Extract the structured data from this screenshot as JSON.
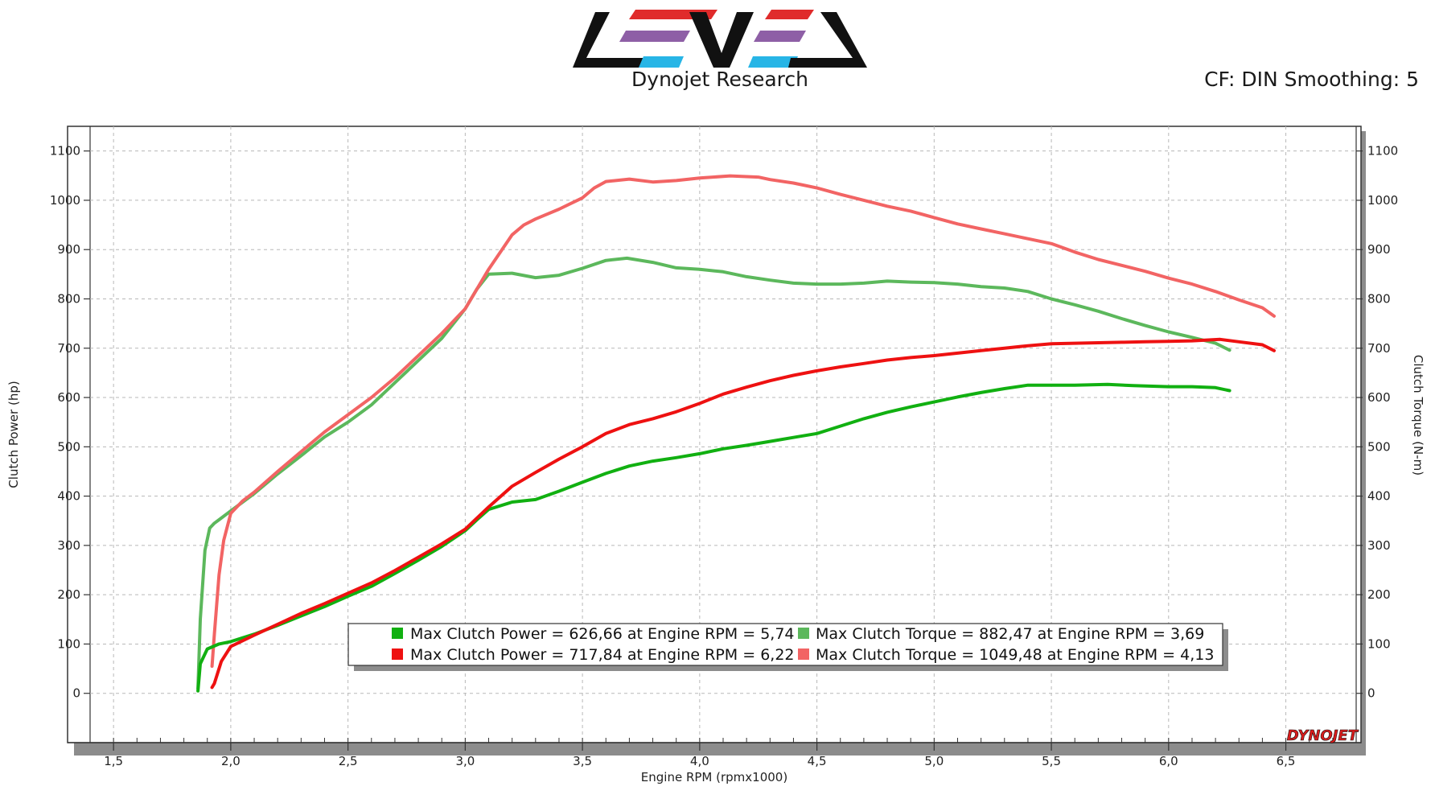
{
  "header": {
    "brand": "Dynojet Research",
    "settings": "CF: DIN Smoothing: 5",
    "watermark": "DYNOJET",
    "logo_text": "LEVEL"
  },
  "colors": {
    "power_green": "#11b011",
    "torque_green": "#5cb85c",
    "power_red": "#ee1111",
    "torque_red": "#f26464",
    "logo_red": "#e02b2b",
    "logo_purple": "#8e5fa6",
    "logo_blue": "#27b5e6"
  },
  "chart_data": {
    "type": "line",
    "xlabel": "Engine RPM (rpmx1000)",
    "ylabel_left": "Clutch Power (hp)",
    "ylabel_right": "Clutch Torque (N-m)",
    "xlim": [
      1.4,
      6.8
    ],
    "ylim": [
      -100,
      1150
    ],
    "x_ticks": [
      "1,5",
      "2,0",
      "2,5",
      "3,0",
      "3,5",
      "4,0",
      "4,5",
      "5,0",
      "5,5",
      "6,0",
      "6,5"
    ],
    "x_tick_values": [
      1.5,
      2.0,
      2.5,
      3.0,
      3.5,
      4.0,
      4.5,
      5.0,
      5.5,
      6.0,
      6.5
    ],
    "y_ticks": [
      "0",
      "100",
      "200",
      "300",
      "400",
      "500",
      "600",
      "700",
      "800",
      "900",
      "1000",
      "1100"
    ],
    "y_tick_values": [
      0,
      100,
      200,
      300,
      400,
      500,
      600,
      700,
      800,
      900,
      1000,
      1100
    ],
    "grid": true,
    "legend_position": "bottom-center",
    "series": [
      {
        "name": "Max Clutch Power = 626,66 at Engine RPM = 5,74",
        "color_key": "power_green",
        "width": 4,
        "x": [
          1.86,
          1.87,
          1.9,
          1.95,
          2.0,
          2.1,
          2.2,
          2.3,
          2.4,
          2.5,
          2.6,
          2.7,
          2.8,
          2.9,
          3.0,
          3.05,
          3.1,
          3.2,
          3.3,
          3.4,
          3.5,
          3.6,
          3.7,
          3.8,
          3.9,
          4.0,
          4.1,
          4.2,
          4.3,
          4.4,
          4.5,
          4.6,
          4.7,
          4.8,
          4.9,
          5.0,
          5.1,
          5.2,
          5.3,
          5.4,
          5.5,
          5.6,
          5.74,
          5.85,
          6.0,
          6.1,
          6.2,
          6.26
        ],
        "y": [
          5,
          60,
          90,
          100,
          105,
          120,
          138,
          157,
          176,
          197,
          217,
          243,
          270,
          298,
          330,
          352,
          373,
          388,
          393,
          410,
          428,
          446,
          461,
          471,
          478,
          486,
          496,
          503,
          511,
          519,
          527,
          542,
          557,
          570,
          581,
          591,
          601,
          610,
          618,
          625,
          625,
          625,
          626.66,
          624,
          622,
          622,
          620,
          614
        ]
      },
      {
        "name": "Max Clutch Power = 717,84 at Engine RPM = 6,22",
        "color_key": "power_red",
        "width": 4,
        "x": [
          1.92,
          1.93,
          1.96,
          2.0,
          2.1,
          2.2,
          2.3,
          2.4,
          2.5,
          2.6,
          2.7,
          2.8,
          2.9,
          3.0,
          3.1,
          3.2,
          3.3,
          3.4,
          3.5,
          3.6,
          3.7,
          3.8,
          3.9,
          4.0,
          4.1,
          4.2,
          4.3,
          4.4,
          4.5,
          4.6,
          4.7,
          4.8,
          4.9,
          5.0,
          5.1,
          5.2,
          5.3,
          5.4,
          5.5,
          5.6,
          5.7,
          5.8,
          5.9,
          6.0,
          6.1,
          6.22,
          6.3,
          6.4,
          6.45
        ],
        "y": [
          12,
          20,
          65,
          95,
          118,
          140,
          162,
          182,
          203,
          224,
          249,
          276,
          303,
          333,
          378,
          420,
          448,
          475,
          500,
          527,
          545,
          557,
          571,
          588,
          607,
          621,
          634,
          645,
          654,
          662,
          669,
          676,
          681,
          685,
          690,
          695,
          700,
          705,
          709,
          710,
          711,
          712,
          713,
          714,
          715,
          717.84,
          713,
          707,
          695
        ]
      },
      {
        "name": "Max Clutch Torque = 882,47 at Engine RPM = 3,69",
        "color_key": "torque_green",
        "width": 4,
        "x": [
          1.86,
          1.87,
          1.89,
          1.91,
          1.93,
          1.95,
          2.0,
          2.1,
          2.2,
          2.3,
          2.4,
          2.5,
          2.6,
          2.7,
          2.8,
          2.9,
          3.0,
          3.05,
          3.1,
          3.2,
          3.3,
          3.4,
          3.5,
          3.6,
          3.69,
          3.8,
          3.9,
          4.0,
          4.1,
          4.2,
          4.3,
          4.4,
          4.5,
          4.6,
          4.7,
          4.8,
          4.9,
          5.0,
          5.1,
          5.2,
          5.3,
          5.4,
          5.5,
          5.6,
          5.7,
          5.8,
          5.9,
          6.0,
          6.1,
          6.2,
          6.26
        ],
        "y": [
          10,
          150,
          290,
          335,
          345,
          352,
          370,
          405,
          445,
          482,
          520,
          550,
          585,
          630,
          675,
          720,
          780,
          820,
          850,
          852,
          843,
          848,
          862,
          878,
          882.47,
          874,
          863,
          860,
          855,
          845,
          838,
          832,
          830,
          830,
          832,
          836,
          834,
          833,
          830,
          825,
          822,
          815,
          800,
          788,
          775,
          760,
          746,
          733,
          722,
          710,
          696
        ]
      },
      {
        "name": "Max Clutch Torque = 1049,48 at Engine RPM = 4,13",
        "color_key": "torque_red",
        "width": 4,
        "x": [
          1.92,
          1.93,
          1.95,
          1.97,
          2.0,
          2.05,
          2.1,
          2.2,
          2.3,
          2.4,
          2.5,
          2.6,
          2.7,
          2.8,
          2.9,
          3.0,
          3.1,
          3.2,
          3.25,
          3.3,
          3.4,
          3.5,
          3.55,
          3.6,
          3.7,
          3.8,
          3.9,
          4.0,
          4.13,
          4.25,
          4.3,
          4.4,
          4.5,
          4.6,
          4.7,
          4.8,
          4.9,
          5.0,
          5.1,
          5.2,
          5.3,
          5.4,
          5.5,
          5.6,
          5.7,
          5.8,
          5.9,
          6.0,
          6.1,
          6.2,
          6.3,
          6.4,
          6.45
        ],
        "y": [
          55,
          120,
          240,
          310,
          365,
          390,
          408,
          450,
          490,
          530,
          565,
          600,
          640,
          685,
          730,
          780,
          860,
          930,
          950,
          962,
          982,
          1005,
          1025,
          1038,
          1043,
          1037,
          1040,
          1045,
          1049.48,
          1047,
          1042,
          1035,
          1025,
          1012,
          1000,
          988,
          978,
          965,
          952,
          942,
          932,
          922,
          912,
          895,
          880,
          868,
          856,
          842,
          830,
          815,
          798,
          782,
          765
        ]
      }
    ]
  }
}
